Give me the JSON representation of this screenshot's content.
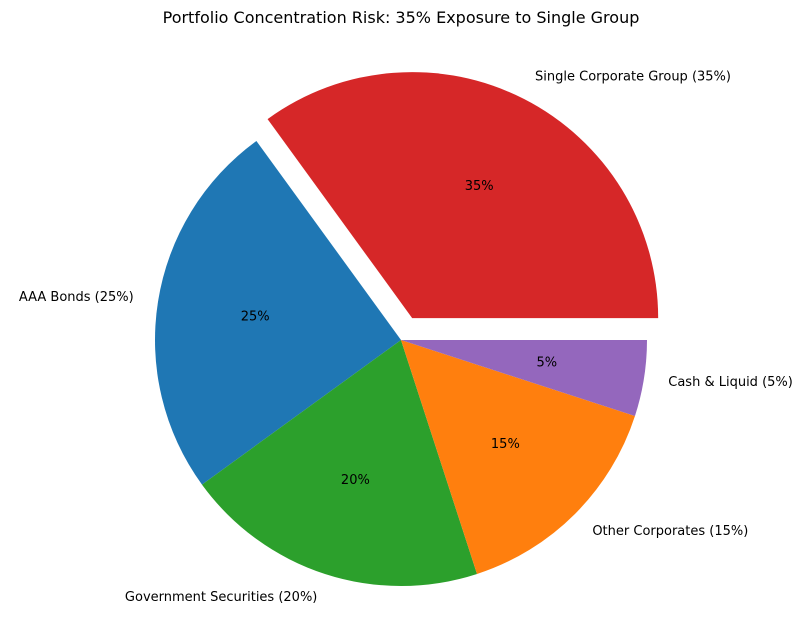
{
  "chart_data": {
    "type": "pie",
    "title": "Portfolio Concentration Risk: 35% Exposure to Single Group",
    "start_angle_deg": 0,
    "direction": "counterclockwise",
    "slices": [
      {
        "label": "Single Corporate Group (35%)",
        "value": 35,
        "pct_label": "35%",
        "color": "#d62728",
        "explode": true
      },
      {
        "label": "AAA Bonds (25%)",
        "value": 25,
        "pct_label": "25%",
        "color": "#1f77b4",
        "explode": false
      },
      {
        "label": "Government Securities (20%)",
        "value": 20,
        "pct_label": "20%",
        "color": "#2ca02c",
        "explode": false
      },
      {
        "label": "Other Corporates (15%)",
        "value": 15,
        "pct_label": "15%",
        "color": "#ff7f0e",
        "explode": false
      },
      {
        "label": "Cash & Liquid (5%)",
        "value": 5,
        "pct_label": "5%",
        "color": "#9467bd",
        "explode": false
      }
    ]
  }
}
